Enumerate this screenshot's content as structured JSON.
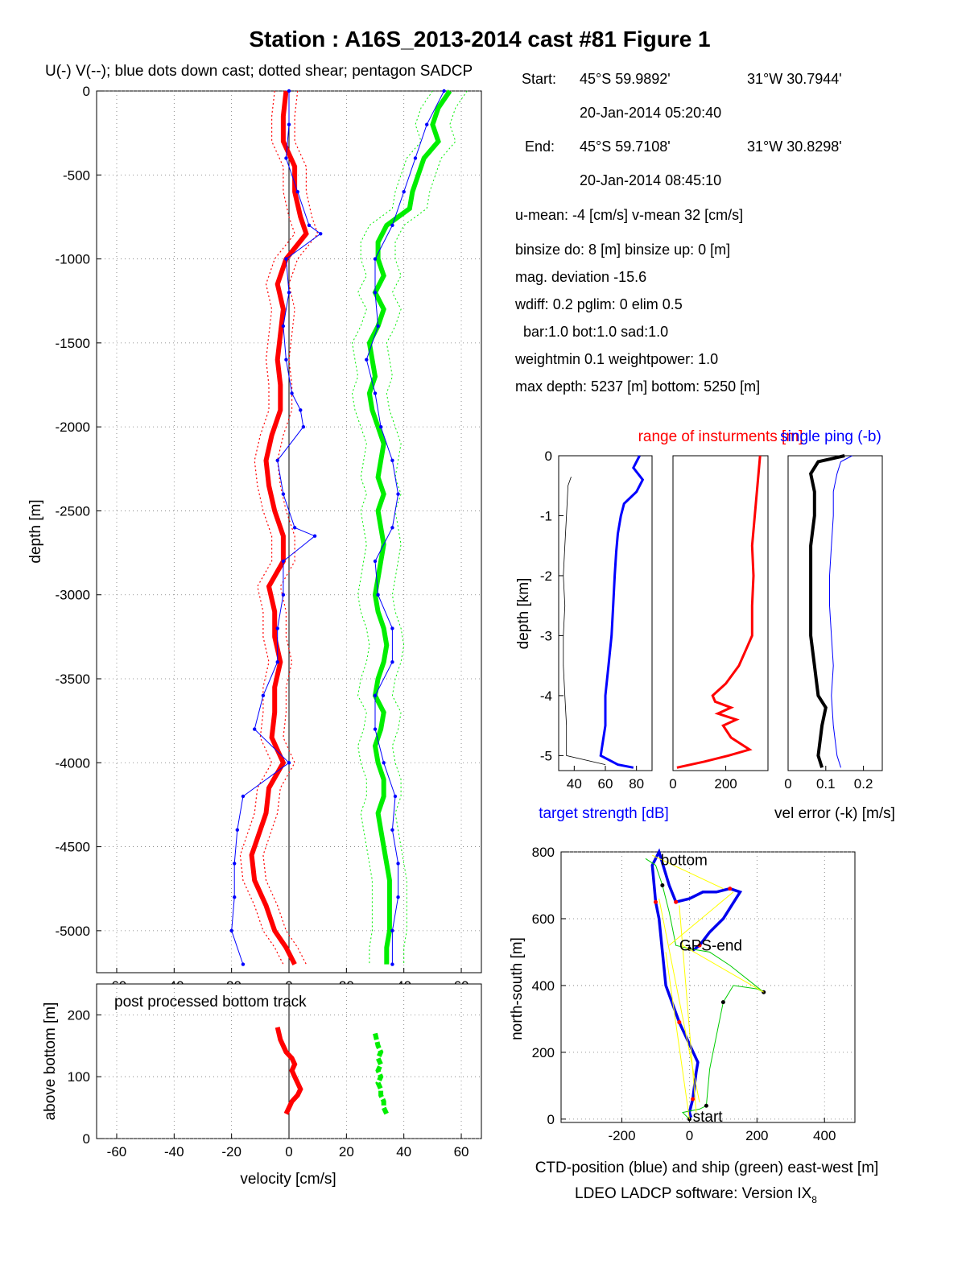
{
  "figure": {
    "title": "Station : A16S_2013-2014 cast #81  Figure 1",
    "legend_text": "U(-) V(--); blue dots down cast; dotted shear; pentagon SADCP",
    "footer": "LDEO LADCP software: Version IX",
    "footer_sub": "8",
    "colors": {
      "u": "#ff0000",
      "v": "#00ee00",
      "downcast": "#0000ff",
      "ship": "#00cc00",
      "ctd": "#0000ee",
      "link": "#ffff00",
      "axis": "#000000"
    }
  },
  "info": {
    "start_label": "Start:",
    "start_lat": "45°S 59.9892'",
    "start_lon": "31°W 30.7944'",
    "start_time": "20-Jan-2014 05:20:40",
    "end_label": "End:",
    "end_lat": "45°S 59.7108'",
    "end_lon": "31°W 30.8298'",
    "end_time": "20-Jan-2014 08:45:10",
    "means": "u-mean:  -4 [cm/s]    v-mean  32 [cm/s]",
    "binsize": "binsize do: 8 [m]  binsize up:  0 [m]",
    "magdev": "mag. deviation -15.6",
    "wdiff": "wdiff: 0.2  pglim: 0  elim 0.5",
    "bar": "bar:1.0 bot:1.0 sad:1.0",
    "weight": "weightmin 0.1  weightpower: 1.0",
    "depth": "max depth: 5237 [m]   bottom: 5250 [m]"
  },
  "chart_data": [
    {
      "id": "velocity-profile",
      "type": "line",
      "xlabel": "",
      "ylabel": "depth [m]",
      "xlim": [
        -67,
        67
      ],
      "ylim": [
        -5250,
        0
      ],
      "xticks": [
        -60,
        -40,
        -20,
        0,
        20,
        40,
        60
      ],
      "yticks": [
        0,
        -500,
        -1000,
        -1500,
        -2000,
        -2500,
        -3000,
        -3500,
        -4000,
        -4500,
        -5000
      ],
      "grid": true,
      "series": [
        {
          "role": "u",
          "depth": [
            0,
            -150,
            -300,
            -450,
            -600,
            -750,
            -850,
            -1000,
            -1150,
            -1300,
            -1450,
            -1600,
            -1750,
            -1900,
            -2050,
            -2200,
            -2350,
            -2500,
            -2650,
            -2800,
            -2950,
            -3100,
            -3250,
            -3400,
            -3550,
            -3700,
            -3850,
            -4000,
            -4150,
            -4300,
            -4450,
            -4550,
            -4700,
            -4850,
            -5000,
            -5100,
            -5200
          ],
          "values": [
            -1,
            -2,
            -2,
            2,
            2,
            4,
            6,
            -1,
            -4,
            -2,
            -3,
            -4,
            -3,
            -3,
            -6,
            -8,
            -7,
            -5,
            -2,
            -2,
            -7,
            -5,
            -5,
            -3,
            -5,
            -5,
            -6,
            -2,
            -7,
            -8,
            -11,
            -13,
            -12,
            -8,
            -5,
            -1,
            2
          ]
        },
        {
          "role": "v",
          "depth": [
            0,
            -100,
            -200,
            -300,
            -400,
            -500,
            -600,
            -700,
            -800,
            -900,
            -1000,
            -1100,
            -1200,
            -1300,
            -1400,
            -1500,
            -1600,
            -1700,
            -1800,
            -1900,
            -2000,
            -2100,
            -2200,
            -2300,
            -2400,
            -2500,
            -2600,
            -2700,
            -2800,
            -2900,
            -3000,
            -3100,
            -3200,
            -3300,
            -3400,
            -3500,
            -3600,
            -3700,
            -3800,
            -3900,
            -4000,
            -4100,
            -4200,
            -4300,
            -4400,
            -4500,
            -4600,
            -4700,
            -4800,
            -4900,
            -5000,
            -5100,
            -5200
          ],
          "values": [
            56,
            52,
            50,
            52,
            47,
            45,
            43,
            42,
            34,
            31,
            31,
            33,
            30,
            33,
            31,
            28,
            29,
            30,
            28,
            29,
            31,
            33,
            32,
            31,
            33,
            31,
            32,
            33,
            32,
            31,
            30,
            31,
            33,
            34,
            33,
            31,
            30,
            33,
            32,
            30,
            31,
            33,
            33,
            31,
            32,
            33,
            34,
            35,
            35,
            35,
            35,
            34,
            34
          ]
        },
        {
          "role": "u-downcast",
          "depth": [
            0,
            -200,
            -400,
            -600,
            -800,
            -850,
            -1000,
            -1200,
            -1400,
            -1600,
            -1800,
            -1900,
            -2000,
            -2200,
            -2400,
            -2600,
            -2650,
            -2800,
            -3000,
            -3200,
            -3400,
            -3600,
            -3800,
            -4000,
            -4200,
            -4400,
            -4600,
            -4800,
            -5000,
            -5200
          ],
          "values": [
            0,
            0,
            -1,
            3,
            7,
            11,
            -1,
            0,
            -2,
            -1,
            1,
            4,
            5,
            -4,
            -2,
            2,
            9,
            -2,
            -2,
            -4,
            -4,
            -9,
            -12,
            0,
            -16,
            -18,
            -19,
            -19,
            -20,
            -16
          ]
        },
        {
          "role": "v-downcast",
          "depth": [
            0,
            -200,
            -400,
            -600,
            -800,
            -1000,
            -1200,
            -1400,
            -1600,
            -1800,
            -2000,
            -2200,
            -2400,
            -2600,
            -2800,
            -3000,
            -3200,
            -3400,
            -3600,
            -3800,
            -4000,
            -4200,
            -4400,
            -4600,
            -4800,
            -5000,
            -5200
          ],
          "values": [
            54,
            48,
            44,
            40,
            36,
            30,
            30,
            31,
            27,
            30,
            32,
            36,
            38,
            36,
            30,
            31,
            36,
            36,
            30,
            30,
            33,
            37,
            36,
            38,
            38,
            36,
            36
          ]
        }
      ]
    },
    {
      "id": "bottom-track",
      "type": "line",
      "title": "post processed bottom track",
      "xlabel": "velocity [cm/s]",
      "ylabel": "above bottom [m]",
      "xlim": [
        -67,
        67
      ],
      "ylim": [
        0,
        250
      ],
      "xticks": [
        -60,
        -40,
        -20,
        0,
        20,
        40,
        60
      ],
      "yticks": [
        0,
        100,
        200
      ],
      "grid": true,
      "series": [
        {
          "role": "u",
          "above": [
            180,
            160,
            140,
            130,
            120,
            110,
            100,
            90,
            80,
            70,
            60,
            50,
            40
          ],
          "values": [
            -4,
            -3,
            -1,
            1,
            2,
            1,
            2,
            3,
            4,
            3,
            1,
            0,
            -1
          ]
        },
        {
          "role": "v",
          "above": [
            170,
            150,
            140,
            130,
            120,
            110,
            100,
            90,
            80,
            70,
            60,
            50,
            40
          ],
          "values": [
            30,
            31,
            32,
            31,
            32,
            31,
            32,
            31,
            32,
            32,
            33,
            33,
            34
          ]
        }
      ]
    },
    {
      "id": "target-strength",
      "type": "line",
      "xlabel": "target strength [dB]",
      "ylabel": "depth [km]",
      "xlim": [
        30,
        90
      ],
      "ylim": [
        -5.25,
        0
      ],
      "xticks": [
        40,
        60,
        80
      ],
      "yticks": [
        0,
        -1,
        -2,
        -3,
        -4,
        -5
      ],
      "grid": false,
      "series": [
        {
          "role": "strength",
          "depth": [
            0,
            -0.2,
            -0.4,
            -0.6,
            -0.8,
            -1.0,
            -1.3,
            -1.6,
            -2.0,
            -2.5,
            -3.0,
            -3.5,
            -4.0,
            -4.5,
            -5.0,
            -5.15,
            -5.2
          ],
          "values": [
            82,
            78,
            84,
            80,
            72,
            70,
            68,
            67,
            66,
            65,
            64,
            62,
            60,
            60,
            57,
            68,
            78
          ]
        },
        {
          "role": "secondary",
          "depth": [
            -0.35,
            -0.5,
            -1.0,
            -1.5,
            -2.0,
            -2.5,
            -3.0,
            -3.5,
            -4.0,
            -4.5,
            -5.0,
            -5.15
          ],
          "values": [
            38,
            36,
            35,
            34,
            33,
            34,
            33,
            33,
            34,
            35,
            35,
            60
          ]
        }
      ]
    },
    {
      "id": "instrument-range",
      "type": "line",
      "title": "range of insturments [m]",
      "xlabel": "",
      "ylabel": "",
      "xlim": [
        0,
        360
      ],
      "ylim": [
        -5.25,
        0
      ],
      "xticks": [
        0,
        200
      ],
      "yticks": [
        0,
        -1,
        -2,
        -3,
        -4,
        -5
      ],
      "grid": false,
      "series": [
        {
          "role": "range",
          "depth": [
            0,
            -0.5,
            -1.0,
            -1.5,
            -2.0,
            -2.5,
            -3.0,
            -3.2,
            -3.5,
            -3.8,
            -4.0,
            -4.1,
            -4.2,
            -4.3,
            -4.4,
            -4.5,
            -4.7,
            -4.9,
            -5.0,
            -5.1,
            -5.2
          ],
          "values": [
            330,
            320,
            310,
            300,
            305,
            300,
            300,
            280,
            250,
            200,
            150,
            160,
            220,
            170,
            240,
            190,
            220,
            290,
            210,
            120,
            15
          ]
        }
      ]
    },
    {
      "id": "velocity-error",
      "type": "line",
      "title": "single ping (-b)",
      "xlabel": "vel error (-k) [m/s]",
      "ylabel": "",
      "xlim": [
        0,
        0.25
      ],
      "ylim": [
        -5.25,
        0
      ],
      "xticks": [
        0,
        0.1,
        0.2
      ],
      "yticks": [
        0,
        -1,
        -2,
        -3,
        -4,
        -5
      ],
      "grid": false,
      "series": [
        {
          "role": "single-ping",
          "depth": [
            0,
            -0.1,
            -0.3,
            -0.6,
            -1.0,
            -1.5,
            -2.0,
            -2.5,
            -3.0,
            -3.5,
            -4.0,
            -4.5,
            -5.0,
            -5.2
          ],
          "values": [
            0.17,
            0.14,
            0.13,
            0.12,
            0.12,
            0.115,
            0.11,
            0.11,
            0.115,
            0.12,
            0.115,
            0.12,
            0.13,
            0.14
          ]
        },
        {
          "role": "error",
          "depth": [
            0,
            -0.1,
            -0.3,
            -0.6,
            -1.0,
            -1.5,
            -2.0,
            -2.5,
            -3.0,
            -3.5,
            -4.0,
            -4.2,
            -4.5,
            -5.0,
            -5.2
          ],
          "values": [
            0.15,
            0.08,
            0.06,
            0.07,
            0.07,
            0.06,
            0.06,
            0.06,
            0.06,
            0.07,
            0.08,
            0.1,
            0.09,
            0.08,
            0.09
          ]
        }
      ]
    },
    {
      "id": "position",
      "type": "line",
      "xlabel": "CTD-position (blue) and ship (green) east-west [m]",
      "ylabel": "north-south [m]",
      "xlim": [
        -380,
        490
      ],
      "ylim": [
        -10,
        800
      ],
      "xticks": [
        -200,
        0,
        200,
        400
      ],
      "yticks": [
        0,
        200,
        400,
        600,
        800
      ],
      "grid": true,
      "labels": [
        {
          "text": "bottom",
          "x": -85,
          "y": 760
        },
        {
          "text": "GPS-end",
          "x": -30,
          "y": 505
        },
        {
          "text": "start",
          "x": 10,
          "y": -8
        }
      ],
      "series": [
        {
          "role": "ctd",
          "x": [
            5,
            0,
            10,
            15,
            20,
            25,
            -30,
            -70,
            -80,
            -90,
            -100,
            -110,
            -90,
            -60,
            -40,
            0,
            40,
            80,
            120,
            150,
            100,
            60,
            30,
            10
          ],
          "y": [
            5,
            20,
            60,
            100,
            140,
            170,
            290,
            400,
            500,
            600,
            650,
            760,
            800,
            700,
            650,
            660,
            680,
            680,
            690,
            680,
            600,
            560,
            520,
            505
          ]
        },
        {
          "role": "ship",
          "x": [
            0,
            -20,
            30,
            50,
            60,
            80,
            100,
            130,
            200,
            220,
            120,
            60,
            0,
            -40,
            -60,
            -80,
            -100,
            -130
          ],
          "y": [
            0,
            20,
            30,
            40,
            150,
            250,
            350,
            400,
            390,
            380,
            460,
            500,
            510,
            520,
            620,
            700,
            760,
            780
          ]
        },
        {
          "role": "links",
          "x": [
            0,
            -70,
            20,
            -30,
            130,
            -60,
            30,
            -90,
            220,
            -20,
            100,
            -110
          ],
          "y": [
            0,
            500,
            20,
            640,
            680,
            520,
            50,
            660,
            380,
            520,
            690,
            790
          ]
        }
      ]
    }
  ]
}
